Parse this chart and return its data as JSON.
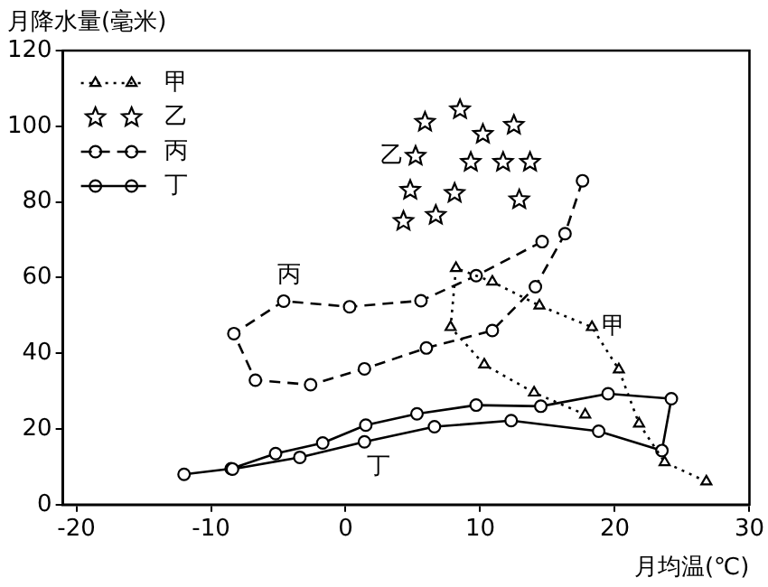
{
  "chart_data": {
    "type": "line",
    "xlabel": "月均温(℃)",
    "ylabel": "月降水量(毫米)",
    "xlim": [
      -21,
      30
    ],
    "xticks": [
      -20,
      -10,
      0,
      10,
      20,
      30
    ],
    "ylim": [
      0,
      120
    ],
    "yticks": [
      0,
      20,
      40,
      60,
      80,
      100,
      120
    ],
    "legend": "top left",
    "series": [
      {
        "name": "甲",
        "type": "line",
        "color": "#000000",
        "marker": "triangle",
        "line_style": "dotted",
        "x": [
          26.8,
          23.7,
          21.8,
          20.3,
          18.3,
          14.4,
          10.9,
          8.2,
          7.8,
          10.3,
          14,
          17.8
        ],
        "values": [
          6.1,
          11.2,
          21.4,
          35.7,
          46.9,
          52.6,
          58.9,
          62.5,
          46.9,
          37,
          29.6,
          23.8
        ]
      },
      {
        "name": "乙",
        "type": "scatter",
        "color": "#000000",
        "marker": "star",
        "x": [
          4.3,
          6.7,
          4.8,
          8.1,
          5.2,
          9.3,
          5.9,
          8.5,
          10.2,
          12.5,
          11.7,
          13.7,
          12.9
        ],
        "values": [
          74.9,
          76.5,
          83.1,
          82.3,
          92.1,
          90.5,
          101.1,
          104.4,
          97.9,
          100.3,
          90.5,
          90.5,
          80.6
        ]
      },
      {
        "name": "丙",
        "type": "line",
        "color": "#000000",
        "marker": "circle",
        "line_style": "dashed",
        "x": [
          14.6,
          9.7,
          5.6,
          0.3,
          -4.6,
          -8.3,
          -6.7,
          -2.6,
          1.4,
          6.0,
          10.9,
          14.1,
          16.3,
          17.6
        ],
        "values": [
          69.5,
          60.5,
          53.9,
          52.3,
          53.8,
          45.2,
          32.9,
          31.7,
          35.9,
          41.4,
          46,
          57.6,
          71.6,
          85.6
        ]
      },
      {
        "name": "丁",
        "type": "line",
        "color": "#000000",
        "marker": "circle",
        "line_style": "solid",
        "x": [
          -12,
          -8.5,
          -5.2,
          -1.7,
          1.5,
          5.3,
          9.7,
          14.5,
          19.5,
          24.2,
          23.5,
          18.8,
          12.3,
          6.6,
          1.4,
          -3.4,
          -8.4
        ],
        "values": [
          8,
          9.5,
          13.5,
          16.3,
          21,
          24,
          26.3,
          26,
          29.3,
          28,
          14.3,
          19.4,
          22.2,
          20.6,
          16.6,
          12.5,
          9.4
        ]
      }
    ],
    "annotations": [
      {
        "text": "甲",
        "x": 18.3,
        "y": 46.9
      },
      {
        "text": "乙",
        "x": 5.2,
        "y": 92.1
      },
      {
        "text": "丙",
        "x": -4.6,
        "y": 53.8
      },
      {
        "text": "丁",
        "x": 1.5,
        "y": 16.6
      }
    ]
  }
}
